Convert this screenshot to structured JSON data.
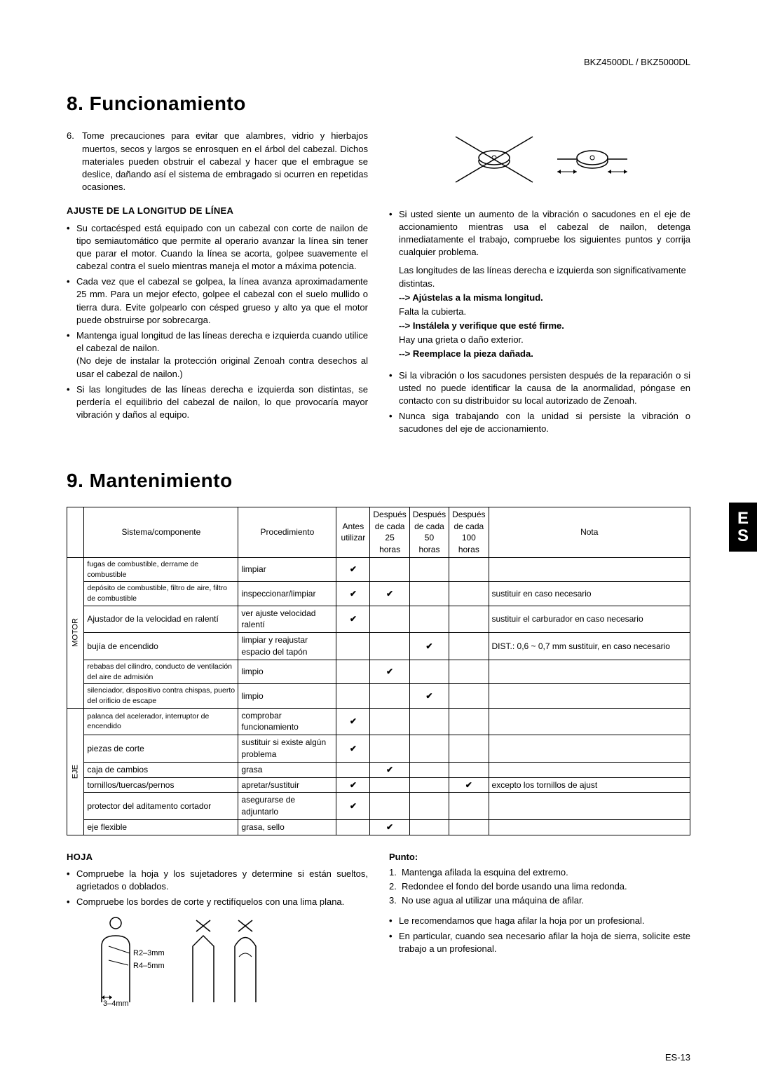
{
  "header": {
    "model": "BKZ4500DL / BKZ5000DL"
  },
  "section8": {
    "title": "8. Funcionamiento",
    "item6_num": "6.",
    "item6_text": "Tome precauciones para evitar que alambres, vidrio y hierbajos muertos, secos y largos se enrosquen en el árbol del cabezal. Dichos materiales pueden obstruir el cabezal y hacer que el embrague se deslice, dañando así el sistema de embragado si ocurren en repetidas ocasiones.",
    "sub_heading": "AJUSTE DE LA LONGITUD DE LÍNEA",
    "left_bullets": [
      "Su cortacésped está equipado con un cabezal con corte de nailon de tipo semiautomático que permite al operario avanzar la línea sin tener que parar el motor. Cuando la línea se acorta, golpee suavemente el cabezal contra el suelo mientras maneja el motor a máxima potencia.",
      "Cada vez que el cabezal se golpea, la línea avanza aproximadamente 25 mm. Para un mejor efecto, golpee el cabezal con el suelo mullido o tierra dura. Evite golpearlo con césped grueso y alto ya que el motor puede obstruirse por sobrecarga.",
      "Mantenga igual longitud de las líneas derecha e izquierda cuando utilice el cabezal de nailon.",
      "Si las longitudes de las líneas derecha e izquierda son distintas, se perdería el equilibrio del cabezal de nailon, lo que provocaría mayor vibración y daños al equipo."
    ],
    "left_b3_note": "(No deje de instalar la protección original Zenoah contra desechos al usar el cabezal de nailon.)",
    "right_bullets_top": [
      "Si usted siente un aumento de la vibración o sacudones en el eje de accionamiento mientras usa el cabezal de nailon, detenga inmediatamente el trabajo, compruebe los siguientes puntos y corrija cualquier problema."
    ],
    "right_note": "Las longitudes de las líneas derecha e izquierda son significativamente distintas.",
    "arrows": [
      {
        "a": "--> Ajústelas a la misma longitud.",
        "t": "Falta la cubierta."
      },
      {
        "a": "--> Instálela y verifique que esté firme.",
        "t": "Hay una grieta o daño exterior."
      },
      {
        "a": "--> Reemplace la pieza dañada.",
        "t": ""
      }
    ],
    "right_bullets_bottom": [
      "Si la vibración o los sacudones persisten después de la reparación o si usted no puede identificar la causa de la anormalidad, póngase en contacto con su distribuidor su local autorizado de Zenoah.",
      "Nunca siga trabajando con la unidad si persiste la vibración o sacudones del eje de accionamiento."
    ]
  },
  "section9": {
    "title": "9. Mantenimiento",
    "es_tab": "E\nS",
    "table": {
      "headers": {
        "system": "Sistema/componente",
        "procedure": "Procedimiento",
        "before": "Antes utilizar",
        "h25": "Después de cada 25 horas",
        "h50": "Después de cada 50 horas",
        "h100": "Después de cada 100 horas",
        "note": "Nota"
      },
      "groups": {
        "motor": "MOTOR",
        "eje": "EJE"
      },
      "rows": [
        {
          "g": "motor",
          "sys": "fugas de combustible, derrame de combustible",
          "proc": "limpiar",
          "c": [
            "✔",
            "",
            "",
            "",
            ""
          ],
          "sm": true
        },
        {
          "g": "motor",
          "sys": "depósito de combustible, filtro de aire, filtro de combustible",
          "proc": "inspeccionar/limpiar",
          "c": [
            "✔",
            "✔",
            "",
            "",
            "sustituir en caso necesario"
          ],
          "sm": true
        },
        {
          "g": "motor",
          "sys": "Ajustador de la velocidad en ralentí",
          "proc": "ver ajuste velocidad ralentí",
          "c": [
            "✔",
            "",
            "",
            "",
            "sustituir el carburador en caso necesario"
          ]
        },
        {
          "g": "motor",
          "sys": "bujía de encendido",
          "proc": "limpiar y reajustar espacio del tapón",
          "c": [
            "",
            "",
            "✔",
            "",
            "DIST.: 0,6 ~ 0,7 mm sustituir, en caso necesario"
          ]
        },
        {
          "g": "motor",
          "sys": "rebabas del cilindro, conducto de ventilación del aire de admisión",
          "proc": "limpio",
          "c": [
            "",
            "✔",
            "",
            "",
            ""
          ],
          "sm": true
        },
        {
          "g": "motor",
          "sys": "silenciador, dispositivo contra chispas, puerto del orificio de escape",
          "proc": "limpio",
          "c": [
            "",
            "",
            "✔",
            "",
            ""
          ],
          "sm": true
        },
        {
          "g": "eje",
          "sys": "palanca del acelerador, interruptor de encendido",
          "proc": "comprobar funcionamiento",
          "c": [
            "✔",
            "",
            "",
            "",
            ""
          ],
          "sm": true
        },
        {
          "g": "eje",
          "sys": "piezas de corte",
          "proc": "sustituir si existe algún problema",
          "c": [
            "✔",
            "",
            "",
            "",
            ""
          ]
        },
        {
          "g": "eje",
          "sys": "caja de cambios",
          "proc": "grasa",
          "c": [
            "",
            "✔",
            "",
            "",
            ""
          ]
        },
        {
          "g": "eje",
          "sys": "tornillos/tuercas/pernos",
          "proc": "apretar/sustituir",
          "c": [
            "✔",
            "",
            "",
            "✔",
            "excepto los tornillos de ajust"
          ]
        },
        {
          "g": "eje",
          "sys": "protector del aditamento cortador",
          "proc": "asegurarse de adjuntarlo",
          "c": [
            "✔",
            "",
            "",
            "",
            ""
          ]
        },
        {
          "g": "eje",
          "sys": "eje flexible",
          "proc": "grasa, sello",
          "c": [
            "",
            "✔",
            "",
            "",
            ""
          ]
        }
      ]
    },
    "hoja_heading": "HOJA",
    "hoja_bullets": [
      "Compruebe la hoja y los sujetadores y determine si están sueltos, agrietados o doblados.",
      "Compruebe los bordes de corte y rectifíquelos con una lima plana."
    ],
    "blade_labels": {
      "r2": "R2–3mm",
      "r4": "R4–5mm",
      "bottom": "3–4mm"
    },
    "punto_heading": "Punto:",
    "punto_list": [
      "Mantenga afilada la esquina del extremo.",
      "Redondee el fondo del borde usando una lima redonda.",
      "No use agua al utilizar una máquina de afilar."
    ],
    "punto_bullets": [
      "Le recomendamos que haga afilar la hoja por un profesional.",
      "En particular, cuando sea necesario afilar la hoja de sierra, solicite este trabajo a un profesional."
    ]
  },
  "footer": {
    "page": "ES-13"
  }
}
